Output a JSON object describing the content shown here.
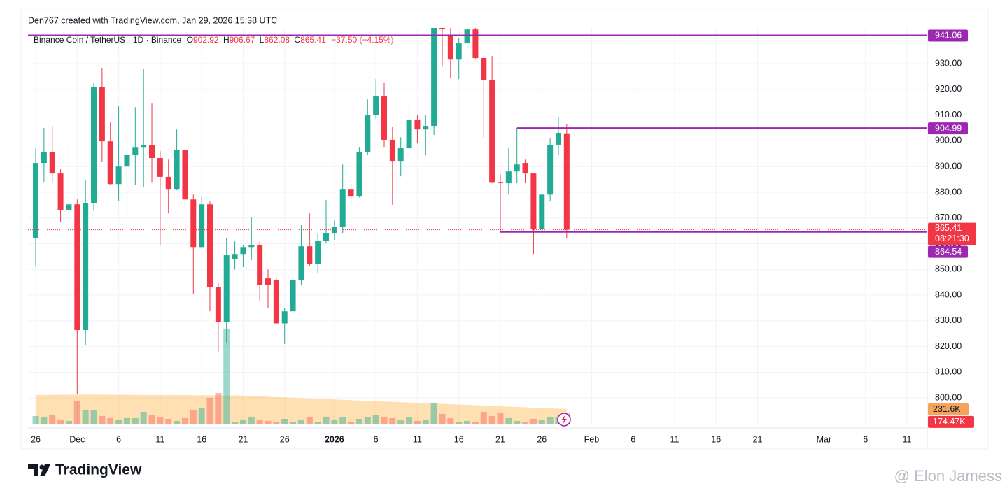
{
  "title": "Den767 created with TradingView.com, Jan 29, 2026 15:38 UTC",
  "chart_data": {
    "type": "candlestick",
    "symbol": "Binance Coin / TetherUS · 1D · Binance",
    "ohlc_keys": [
      "O",
      "H",
      "L",
      "C"
    ],
    "change_label": "−37.50 (−4.15%)",
    "up_color": "#22ab94",
    "down_color": "#f23645",
    "ohlc": [
      [
        862.3,
        897.1,
        851.4,
        891.4
      ],
      [
        891.4,
        905.0,
        884.0,
        895.5
      ],
      [
        895.5,
        905.8,
        884.0,
        887.3
      ],
      [
        887.3,
        889.0,
        868.3,
        873.2
      ],
      [
        873.2,
        899.5,
        869.0,
        875.3
      ],
      [
        875.3,
        877.2,
        801.6,
        826.4
      ],
      [
        826.4,
        884.6,
        820.7,
        875.9
      ],
      [
        875.9,
        922.7,
        873.2,
        920.8
      ],
      [
        920.8,
        928.4,
        891.7,
        899.8
      ],
      [
        899.8,
        907.2,
        882.7,
        883.2
      ],
      [
        883.2,
        913.4,
        876.7,
        890.0
      ],
      [
        890.0,
        907.2,
        870.4,
        894.4
      ],
      [
        894.4,
        913.1,
        882.7,
        897.6
      ],
      [
        897.6,
        928.0,
        881.9,
        898.2
      ],
      [
        898.2,
        914.5,
        884.0,
        893.3
      ],
      [
        893.3,
        896.0,
        859.6,
        886.0
      ],
      [
        886.0,
        892.7,
        871.8,
        881.3
      ],
      [
        881.3,
        904.4,
        880.8,
        896.3
      ],
      [
        896.3,
        897.6,
        873.2,
        877.2
      ],
      [
        877.2,
        879.1,
        840.5,
        858.7
      ],
      [
        858.7,
        878.6,
        858.2,
        875.3
      ],
      [
        875.3,
        876.4,
        833.7,
        843.2
      ],
      [
        843.2,
        844.6,
        817.9,
        829.6
      ],
      [
        829.6,
        862.3,
        821.5,
        855.5
      ],
      [
        854.1,
        860.9,
        850.0,
        856.0
      ],
      [
        856.0,
        859.6,
        850.9,
        858.7
      ],
      [
        858.7,
        870.4,
        853.6,
        859.6
      ],
      [
        859.6,
        860.9,
        837.8,
        844.0
      ],
      [
        846.5,
        850.0,
        835.0,
        844.0
      ],
      [
        846.0,
        846.8,
        828.6,
        829.0
      ],
      [
        829.0,
        835.0,
        821.0,
        833.7
      ],
      [
        833.7,
        847.4,
        833.7,
        846.0
      ],
      [
        846.0,
        867.2,
        844.0,
        859.0
      ],
      [
        859.0,
        871.8,
        851.4,
        852.2
      ],
      [
        852.2,
        864.2,
        848.7,
        861.0
      ],
      [
        861.0,
        877.0,
        860.1,
        864.2
      ],
      [
        864.2,
        869.0,
        861.5,
        866.5
      ],
      [
        866.5,
        890.8,
        864.2,
        881.3
      ],
      [
        881.3,
        884.0,
        875.1,
        878.6
      ],
      [
        878.6,
        897.6,
        878.0,
        895.5
      ],
      [
        895.5,
        916.1,
        894.4,
        909.9
      ],
      [
        909.9,
        924.0,
        908.5,
        917.5
      ],
      [
        917.5,
        922.7,
        897.6,
        900.4
      ],
      [
        900.4,
        905.3,
        875.1,
        892.2
      ],
      [
        892.2,
        901.4,
        886.2,
        897.1
      ],
      [
        897.1,
        915.3,
        896.3,
        908.0
      ],
      [
        908.0,
        909.9,
        899.0,
        904.4
      ],
      [
        904.4,
        909.9,
        894.4,
        905.8
      ],
      [
        905.8,
        950.0,
        902.3,
        946.0
      ],
      [
        946.0,
        953.0,
        928.9,
        943.5
      ],
      [
        941.2,
        944.0,
        924.3,
        931.6
      ],
      [
        931.6,
        939.8,
        924.0,
        937.9
      ],
      [
        937.9,
        946.0,
        936.0,
        943.3
      ],
      [
        943.3,
        946.0,
        932.0,
        932.2
      ],
      [
        932.2,
        932.5,
        901.2,
        923.5
      ],
      [
        923.5,
        933.0,
        883.5,
        884.0
      ],
      [
        884.0,
        887.0,
        865.0,
        883.5
      ],
      [
        883.5,
        897.1,
        879.1,
        888.1
      ],
      [
        888.1,
        905.0,
        883.5,
        890.8
      ],
      [
        891.4,
        892.7,
        883.5,
        887.3
      ],
      [
        887.3,
        887.5,
        856.0,
        865.8
      ],
      [
        865.8,
        879.1,
        865.0,
        879.1
      ],
      [
        879.1,
        901.2,
        876.4,
        898.5
      ],
      [
        898.5,
        909.3,
        894.4,
        903.1
      ],
      [
        902.92,
        906.67,
        862.08,
        865.41
      ]
    ],
    "xlim": [
      -0.93,
      107.45
    ],
    "xticks": [
      {
        "value": 0,
        "label": "26"
      },
      {
        "value": 5,
        "label": "Dec"
      },
      {
        "value": 10,
        "label": "6"
      },
      {
        "value": 15,
        "label": "11"
      },
      {
        "value": 20,
        "label": "16"
      },
      {
        "value": 25,
        "label": "21"
      },
      {
        "value": 30,
        "label": "26"
      },
      {
        "value": 36,
        "label": "2026"
      },
      {
        "value": 41,
        "label": "6"
      },
      {
        "value": 46,
        "label": "11"
      },
      {
        "value": 51,
        "label": "16"
      },
      {
        "value": 56,
        "label": "21"
      },
      {
        "value": 61,
        "label": "26"
      },
      {
        "value": 67,
        "label": "Feb"
      },
      {
        "value": 72,
        "label": "6"
      },
      {
        "value": 77,
        "label": "11"
      },
      {
        "value": 82,
        "label": "16"
      },
      {
        "value": 87,
        "label": "21"
      },
      {
        "value": 95,
        "label": "Mar"
      },
      {
        "value": 100,
        "label": "6"
      },
      {
        "value": 105,
        "label": "11"
      }
    ],
    "ylim": [
      789.7,
      943.9
    ],
    "yticks": [
      {
        "value": 800,
        "label": "800.00"
      },
      {
        "value": 810,
        "label": "810.00"
      },
      {
        "value": 820,
        "label": "820.00"
      },
      {
        "value": 830,
        "label": "830.00"
      },
      {
        "value": 840,
        "label": "840.00"
      },
      {
        "value": 850,
        "label": "850.00"
      },
      {
        "value": 860,
        "label": "860.00"
      },
      {
        "value": 870,
        "label": "870.00"
      },
      {
        "value": 880,
        "label": "880.00"
      },
      {
        "value": 890,
        "label": "890.00"
      },
      {
        "value": 900,
        "label": "900.00"
      },
      {
        "value": 910,
        "label": "910.00"
      },
      {
        "value": 920,
        "label": "920.00"
      },
      {
        "value": 930,
        "label": "930.00"
      }
    ],
    "grid": true,
    "levels": [
      {
        "value": 941.06,
        "color": "#9c27b0"
      },
      {
        "value": 904.99,
        "color": "#9c27b0",
        "from": 58
      },
      {
        "value": 864.54,
        "color": "#9c27b0",
        "from": 56
      }
    ],
    "countdown": "08:21:30",
    "volume": {
      "ylim": [
        0,
        1500
      ],
      "values": [
        126,
        105,
        147,
        74,
        53,
        357,
        221,
        210,
        126,
        95,
        63,
        95,
        95,
        189,
        147,
        116,
        84,
        53,
        95,
        221,
        252,
        399,
        473,
        1439,
        32,
        74,
        116,
        74,
        53,
        32,
        84,
        42,
        63,
        116,
        42,
        116,
        74,
        105,
        42,
        84,
        105,
        147,
        116,
        95,
        63,
        105,
        53,
        63,
        326,
        158,
        95,
        42,
        53,
        32,
        189,
        126,
        179,
        95,
        53,
        32,
        84,
        63,
        105,
        116,
        174.47
      ],
      "last_value_label": "174.47K",
      "ma": [
        440,
        442,
        444,
        445,
        446,
        447,
        448,
        448,
        447,
        446,
        445,
        444,
        443,
        442,
        441,
        440,
        440,
        439,
        439,
        438,
        438,
        437,
        437,
        436,
        436,
        431,
        426,
        421,
        416,
        410,
        405,
        400,
        395,
        390,
        385,
        380,
        375,
        370,
        364,
        359,
        354,
        349,
        344,
        339,
        334,
        329,
        324,
        318,
        313,
        308,
        303,
        298,
        293,
        288,
        283,
        278,
        272,
        267,
        262,
        257,
        252,
        247,
        242,
        237,
        231.6
      ],
      "ma_color": "#ff9800",
      "last_ma_label": "231.6K"
    }
  },
  "footer": {
    "brand": "TradingView",
    "watermark": "@ Elon Jamess"
  }
}
